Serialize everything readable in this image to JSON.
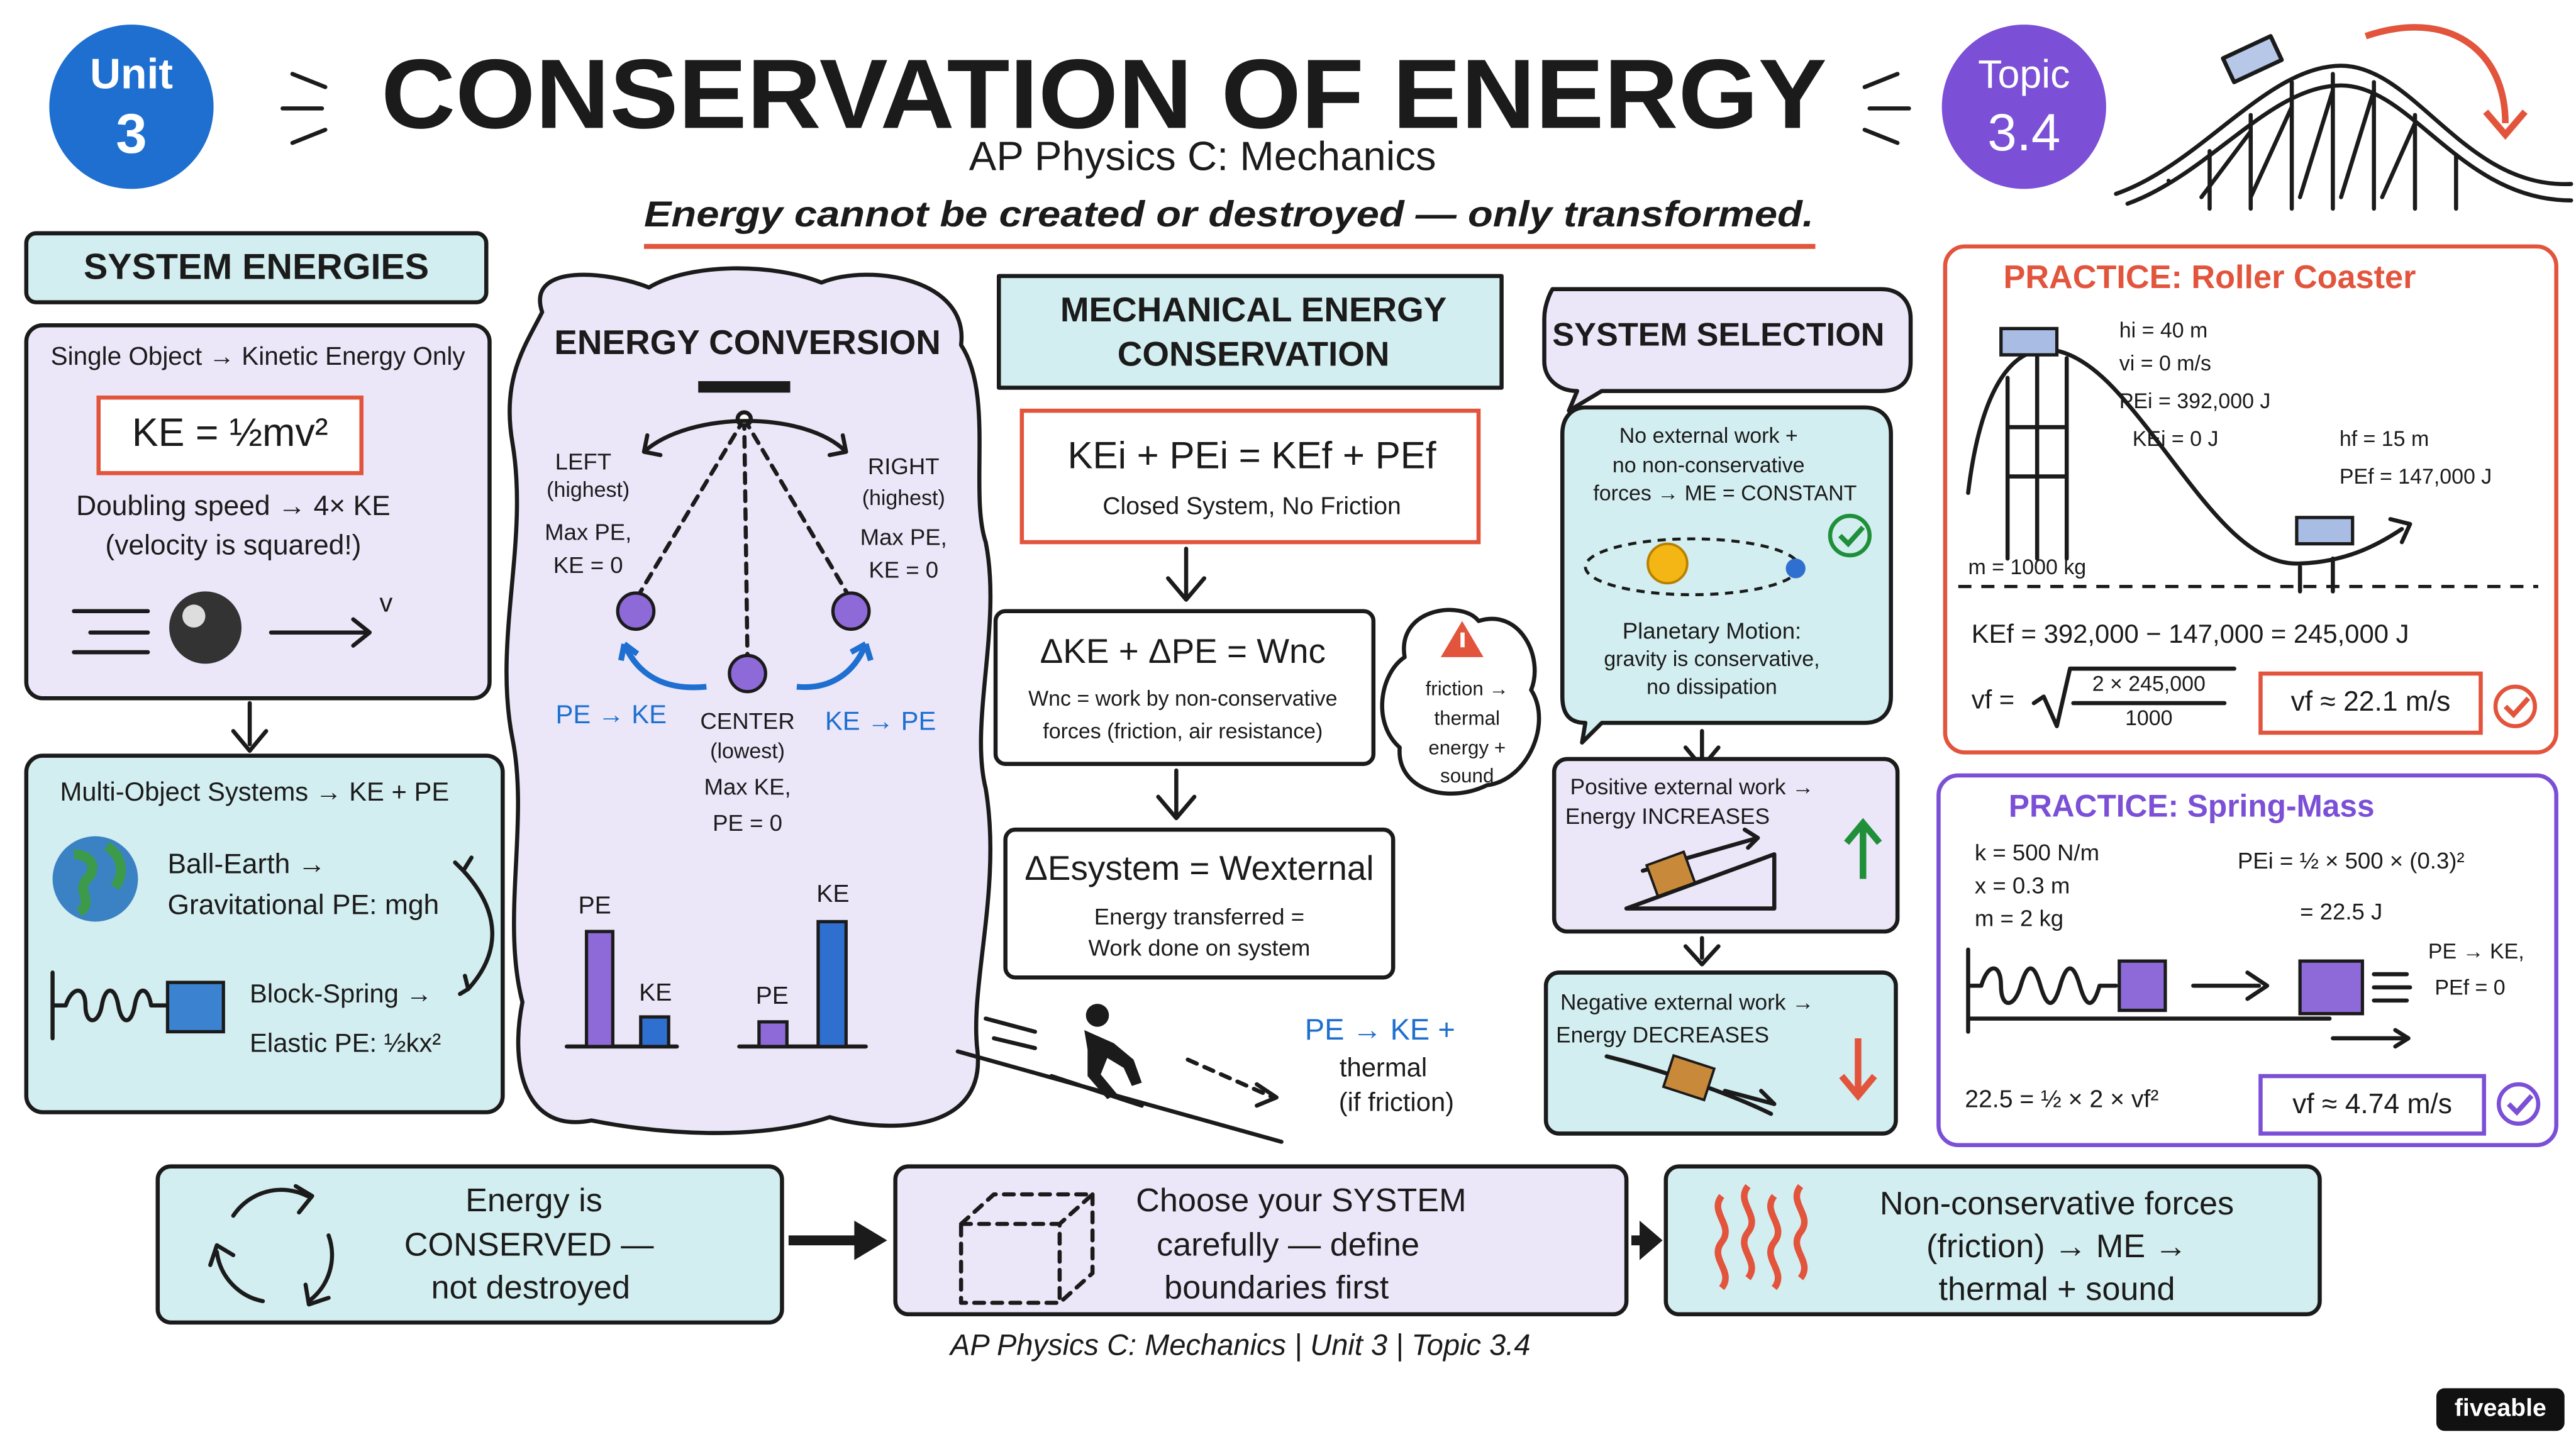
{
  "header": {
    "unit_badge": {
      "label": "Unit",
      "number": "3"
    },
    "title": "CONSERVATION OF ENERGY",
    "subtitle": "AP Physics C: Mechanics",
    "tagline": "Energy cannot be created or destroyed — only transformed.",
    "topic_badge": {
      "label": "Topic",
      "number": "3.4"
    }
  },
  "system_energies": {
    "title": "SYSTEM ENERGIES",
    "single": {
      "heading": "Single Object → Kinetic Energy Only",
      "formula": "KE = ½mv²",
      "note": [
        "Doubling speed → 4× KE",
        "(velocity is squared!)"
      ],
      "velocity_label": "v"
    },
    "multi": {
      "heading": "Multi-Object Systems → KE + PE",
      "earth": [
        "Ball-Earth →",
        "Gravitational PE: mgh"
      ],
      "spring": [
        "Block-Spring →",
        "Elastic PE: ½kx²"
      ]
    }
  },
  "energy_conversion": {
    "title": "ENERGY CONVERSION",
    "left": [
      "LEFT",
      "(highest)",
      "Max PE,",
      "KE = 0"
    ],
    "right": [
      "RIGHT",
      "(highest)",
      "Max PE,",
      "KE = 0"
    ],
    "center": [
      "CENTER",
      "(lowest)",
      "Max KE,",
      "PE = 0"
    ],
    "left_arrow": "PE → KE",
    "right_arrow": "KE → PE",
    "bars_left": [
      "PE",
      "KE"
    ],
    "bars_right": [
      "PE",
      "KE"
    ]
  },
  "mechanical_energy": {
    "title": [
      "MECHANICAL ENERGY",
      "CONSERVATION"
    ],
    "equation": "KEi + PEi = KEf + PEf",
    "equation_note": "Closed System, No Friction",
    "work_energy": {
      "equation": "ΔKE + ΔPE = Wnc",
      "note": [
        "Wnc = work by non-conservative",
        "forces (friction, air resistance)"
      ]
    },
    "system_energy": {
      "equation": "ΔEsystem = Wexternal",
      "note": [
        "Energy transferred =",
        "Work done on system"
      ]
    },
    "friction_bubble": [
      "friction →",
      "thermal",
      "energy +",
      "sound"
    ],
    "skier_note": [
      "PE → KE +",
      "thermal",
      "(if friction)"
    ]
  },
  "system_selection": {
    "title": "SYSTEM SELECTION",
    "closed": {
      "text": [
        "No external work +",
        "no non-conservative",
        "forces → ME = CONSTANT"
      ],
      "example": [
        "Planetary Motion:",
        "gravity is conservative,",
        "no dissipation"
      ]
    },
    "positive": [
      "Positive external work →",
      "Energy INCREASES"
    ],
    "negative": [
      "Negative external work →",
      "Energy DECREASES"
    ]
  },
  "practice_roller": {
    "title": "PRACTICE: Roller Coaster",
    "givens": [
      "hi = 40 m",
      "vi = 0 m/s",
      "PEi = 392,000 J",
      "KEi = 0 J"
    ],
    "final": [
      "hf = 15 m",
      "PEf = 147,000 J"
    ],
    "mass": "m = 1000 kg",
    "ke_final": "KEf = 392,000 − 147,000 = 245,000 J",
    "vf_lhs": "vf =",
    "vf_numerator": "2 × 245,000",
    "vf_denominator": "1000",
    "answer": "vf ≈ 22.1 m/s"
  },
  "practice_spring": {
    "title": "PRACTICE: Spring-Mass",
    "givens": [
      "k = 500 N/m",
      "x = 0.3 m",
      "m = 2 kg"
    ],
    "pe_initial": [
      "PEi = ½ × 500 × (0.3)²",
      "= 22.5 J"
    ],
    "after": [
      "PE → KE,",
      "PEf = 0"
    ],
    "equation": "22.5 = ½ × 2 × vf²",
    "answer": "vf ≈ 4.74 m/s"
  },
  "summary": [
    [
      "Energy is",
      "CONSERVED —",
      "not destroyed"
    ],
    [
      "Choose your SYSTEM",
      "carefully — define",
      "boundaries first"
    ],
    [
      "Non-conservative forces",
      "(friction) → ME →",
      "thermal + sound"
    ]
  ],
  "footer": "AP Physics C: Mechanics | Unit 3 | Topic 3.4",
  "brand": "fiveable"
}
